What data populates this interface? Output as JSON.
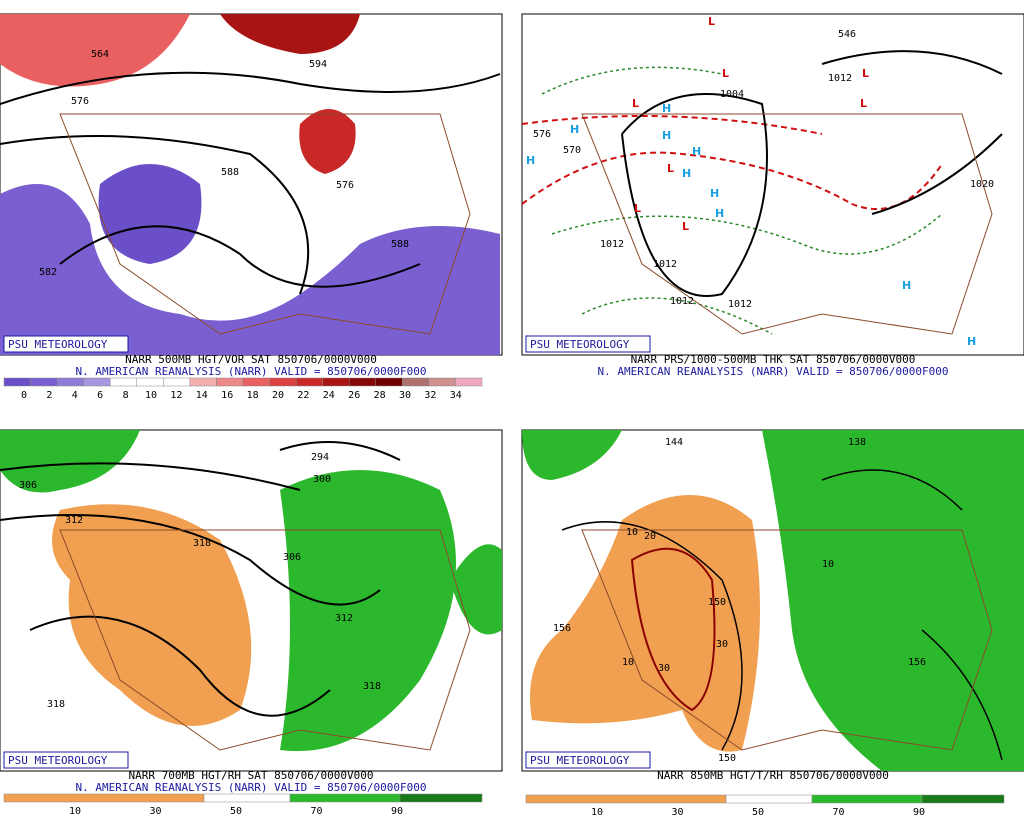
{
  "panels": [
    {
      "badge": "PSU METEOROLOGY",
      "caption": "NARR 500MB HGT/VOR SAT 850706/0000V000",
      "subcaption": "N. AMERICAN REANALYSIS (NARR) VALID = 850706/0000F000",
      "colorbar": [
        0,
        2,
        4,
        6,
        8,
        10,
        12,
        14,
        16,
        18,
        20,
        22,
        24,
        26,
        28,
        30,
        32,
        34
      ],
      "colors": [
        "#6a4fc8",
        "#7a5fd0",
        "#8f7ad8",
        "#a897e0",
        "#ffffff",
        "#ffffff",
        "#ffffff",
        "#f4b0b0",
        "#ee8888",
        "#e86060",
        "#dc4040",
        "#c82828",
        "#a81414",
        "#880808",
        "#700000",
        "#b07070",
        "#d09090",
        "#f0a8c0"
      ],
      "labels": [
        "564",
        "576",
        "588",
        "576",
        "588",
        "582",
        "594"
      ]
    },
    {
      "badge": "PSU METEOROLOGY",
      "caption": "NARR PRS/1000-500MB THK SAT 850706/0000V000",
      "subcaption": "N. AMERICAN REANALYSIS (NARR) VALID = 850706/0000F000",
      "labels": [
        "1004",
        "1012",
        "1012",
        "1012",
        "1012",
        "1012",
        "1020",
        "576",
        "570",
        "546"
      ],
      "markers": [
        "L",
        "L",
        "L",
        "L",
        "L",
        "L",
        "L",
        "L",
        "H",
        "H",
        "H",
        "H",
        "H",
        "H",
        "H",
        "H",
        "H",
        "H"
      ]
    },
    {
      "badge": "PSU METEOROLOGY",
      "caption": "NARR 700MB HGT/RH SAT 850706/0000V000",
      "subcaption": "N. AMERICAN REANALYSIS (NARR) VALID = 850706/0000F000",
      "colorbar": [
        10,
        30,
        50,
        70,
        90
      ],
      "labels": [
        "306",
        "312",
        "318",
        "318",
        "300",
        "294",
        "306",
        "312",
        "318"
      ]
    },
    {
      "badge": "PSU METEOROLOGY",
      "caption": "NARR 850MB HGT/T/RH 850706/0000V000",
      "colorbar": [
        10,
        30,
        50,
        70,
        90
      ],
      "labels": [
        "144",
        "156",
        "150",
        "150",
        "156",
        "138",
        "10",
        "20",
        "30",
        "30",
        "10",
        "10"
      ]
    }
  ]
}
